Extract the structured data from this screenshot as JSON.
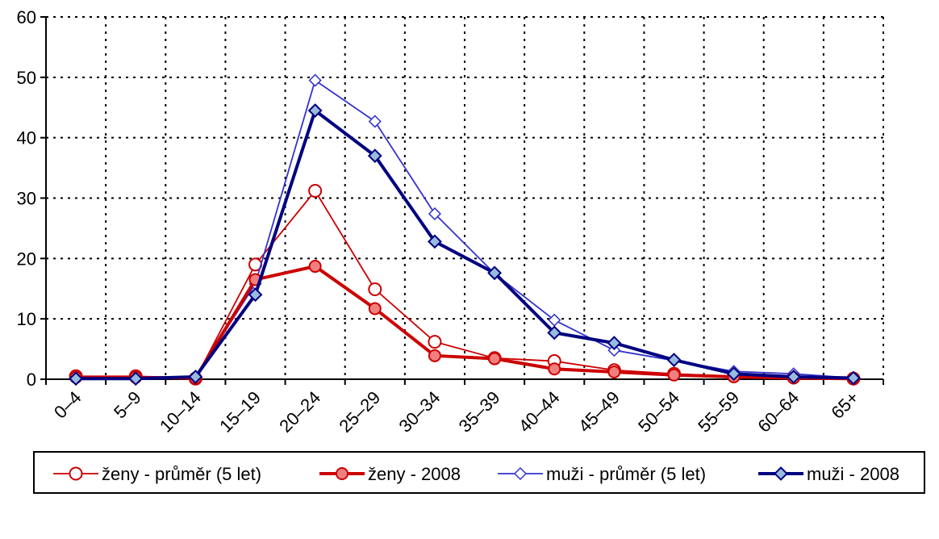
{
  "chart_data": {
    "type": "line",
    "title": "",
    "xlabel": "",
    "ylabel": "",
    "ylim": [
      0,
      60
    ],
    "yticks": [
      0,
      10,
      20,
      30,
      40,
      50,
      60
    ],
    "grid": true,
    "legend_position": "bottom",
    "categories": [
      "0–4",
      "5–9",
      "10–14",
      "15–19",
      "20–24",
      "25–29",
      "30–34",
      "35–39",
      "40–44",
      "45–49",
      "50–54",
      "55–59",
      "60–64",
      "65+"
    ],
    "series": [
      {
        "name": "ženy - průměr (5 let)",
        "color": "#cc0000",
        "marker": "circle",
        "marker_fill": "#ffffff",
        "line_style": "thin",
        "values": [
          0.5,
          0.5,
          0.1,
          19.0,
          31.2,
          14.9,
          6.2,
          3.5,
          3.0,
          1.5,
          0.9,
          0.5,
          0.3,
          0.1
        ]
      },
      {
        "name": "ženy - 2008",
        "color": "#cc0000",
        "marker": "circle",
        "marker_fill": "#f08080",
        "line_style": "thick",
        "values": [
          0.3,
          0.3,
          0.2,
          16.5,
          18.7,
          11.7,
          3.9,
          3.4,
          1.7,
          1.2,
          0.7,
          0.4,
          0.2,
          0.1
        ]
      },
      {
        "name": "muži - průměr (5 let)",
        "color": "#3333cc",
        "marker": "diamond",
        "marker_fill": "#ffffff",
        "line_style": "thin",
        "values": [
          0.1,
          0.1,
          0.4,
          15.8,
          49.5,
          42.7,
          27.4,
          17.5,
          9.8,
          4.8,
          3.1,
          1.3,
          0.9,
          0.2
        ]
      },
      {
        "name": "muži - 2008",
        "color": "#000080",
        "marker": "diamond",
        "marker_fill": "#99bbdd",
        "line_style": "thick",
        "values": [
          0.1,
          0.1,
          0.4,
          14.0,
          44.5,
          37.0,
          22.8,
          17.6,
          7.7,
          6.0,
          3.2,
          0.9,
          0.4,
          0.2
        ]
      }
    ]
  }
}
